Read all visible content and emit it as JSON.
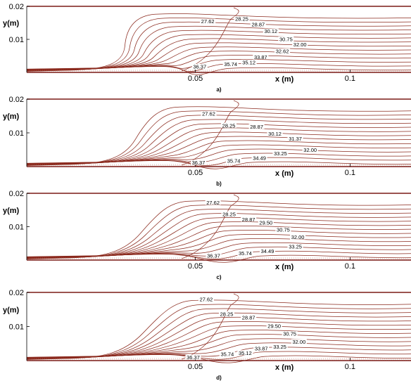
{
  "chart_data": [
    {
      "type": "contour",
      "panel_label": "a)",
      "xlabel": "x (m)",
      "ylabel": "y(m)",
      "x_ticks": [
        {
          "value": 0.05,
          "label": "0.05"
        },
        {
          "value": 0.1,
          "label": "0.1"
        }
      ],
      "y_ticks": [
        {
          "value": 0.01,
          "label": "0.01"
        },
        {
          "value": 0.02,
          "label": "0.02"
        }
      ],
      "xlim": [
        -0.0045,
        0.1197
      ],
      "ylim": [
        0.0,
        0.02
      ],
      "contour_labels": [
        {
          "text": "27.62",
          "x": 0.054,
          "y": 0.0151
        },
        {
          "text": "28.25",
          "x": 0.065,
          "y": 0.0158
        },
        {
          "text": "28.87",
          "x": 0.0703,
          "y": 0.0141
        },
        {
          "text": "30.12",
          "x": 0.0744,
          "y": 0.0121
        },
        {
          "text": "30.75",
          "x": 0.0793,
          "y": 0.0097
        },
        {
          "text": "32.00",
          "x": 0.0838,
          "y": 0.0081
        },
        {
          "text": "32.62",
          "x": 0.0781,
          "y": 0.0061
        },
        {
          "text": "33.87",
          "x": 0.0711,
          "y": 0.0043
        },
        {
          "text": "35.12",
          "x": 0.0673,
          "y": 0.0027
        },
        {
          "text": "35.74",
          "x": 0.0614,
          "y": 0.0021
        },
        {
          "text": "36.37",
          "x": 0.0514,
          "y": 0.0014
        }
      ]
    },
    {
      "type": "contour",
      "panel_label": "b)",
      "xlabel": "x (m)",
      "ylabel": "y(m)",
      "x_ticks": [
        {
          "value": 0.05,
          "label": "0.05"
        },
        {
          "value": 0.1,
          "label": "0.1"
        }
      ],
      "y_ticks": [
        {
          "value": 0.01,
          "label": "0.01"
        },
        {
          "value": 0.02,
          "label": "0.02"
        }
      ],
      "xlim": [
        -0.0045,
        0.1197
      ],
      "ylim": [
        0.0,
        0.02
      ],
      "contour_labels": [
        {
          "text": "27.62",
          "x": 0.0543,
          "y": 0.0153
        },
        {
          "text": "28.25",
          "x": 0.0608,
          "y": 0.0118
        },
        {
          "text": "28.87",
          "x": 0.0698,
          "y": 0.0115
        },
        {
          "text": "30.12",
          "x": 0.0757,
          "y": 0.0094
        },
        {
          "text": "31.37",
          "x": 0.0823,
          "y": 0.0079
        },
        {
          "text": "32.00",
          "x": 0.0871,
          "y": 0.0046
        },
        {
          "text": "33.25",
          "x": 0.0775,
          "y": 0.0035
        },
        {
          "text": "34.49",
          "x": 0.0707,
          "y": 0.0022
        },
        {
          "text": "35.74",
          "x": 0.0624,
          "y": 0.0014
        },
        {
          "text": "36.37",
          "x": 0.051,
          "y": 0.0008
        }
      ]
    },
    {
      "type": "contour",
      "panel_label": "c)",
      "xlabel": "x (m)",
      "ylabel": "y(m)",
      "x_ticks": [
        {
          "value": 0.05,
          "label": "0.05"
        },
        {
          "value": 0.1,
          "label": "0.1"
        }
      ],
      "y_ticks": [
        {
          "value": 0.01,
          "label": "0.01"
        },
        {
          "value": 0.02,
          "label": "0.02"
        }
      ],
      "xlim": [
        -0.0045,
        0.1197
      ],
      "ylim": [
        0.0,
        0.02
      ],
      "contour_labels": [
        {
          "text": "27.62",
          "x": 0.0557,
          "y": 0.0168
        },
        {
          "text": "28.25",
          "x": 0.0609,
          "y": 0.0134
        },
        {
          "text": "28.87",
          "x": 0.0672,
          "y": 0.0118
        },
        {
          "text": "29.50",
          "x": 0.0728,
          "y": 0.0108
        },
        {
          "text": "30.75",
          "x": 0.0784,
          "y": 0.0087
        },
        {
          "text": "32.00",
          "x": 0.0831,
          "y": 0.0065
        },
        {
          "text": "33.25",
          "x": 0.0823,
          "y": 0.0037
        },
        {
          "text": "34.49",
          "x": 0.0733,
          "y": 0.0023
        },
        {
          "text": "35.74",
          "x": 0.0661,
          "y": 0.0017
        },
        {
          "text": "36.37",
          "x": 0.0559,
          "y": 0.0009
        }
      ]
    },
    {
      "type": "contour",
      "panel_label": "d)",
      "xlabel": "x (m)",
      "ylabel": "y(m)",
      "x_ticks": [
        {
          "value": 0.05,
          "label": "0.05"
        },
        {
          "value": 0.1,
          "label": "0.1"
        }
      ],
      "y_ticks": [
        {
          "value": 0.01,
          "label": "0.01"
        },
        {
          "value": 0.02,
          "label": "0.02"
        }
      ],
      "xlim": [
        -0.0045,
        0.1197
      ],
      "ylim": [
        0.0,
        0.02
      ],
      "contour_labels": [
        {
          "text": "27.62",
          "x": 0.0535,
          "y": 0.0176
        },
        {
          "text": "28.25",
          "x": 0.0601,
          "y": 0.0133
        },
        {
          "text": "28.87",
          "x": 0.0672,
          "y": 0.0123
        },
        {
          "text": "29.50",
          "x": 0.0755,
          "y": 0.0098
        },
        {
          "text": "30.75",
          "x": 0.0805,
          "y": 0.0075
        },
        {
          "text": "32.00",
          "x": 0.0835,
          "y": 0.0052
        },
        {
          "text": "33.25",
          "x": 0.0773,
          "y": 0.0037
        },
        {
          "text": "33.87",
          "x": 0.0713,
          "y": 0.0032
        },
        {
          "text": "35.12",
          "x": 0.0661,
          "y": 0.0019
        },
        {
          "text": "35.74",
          "x": 0.0603,
          "y": 0.0015
        },
        {
          "text": "36.37",
          "x": 0.0493,
          "y": 0.0006
        }
      ]
    }
  ]
}
